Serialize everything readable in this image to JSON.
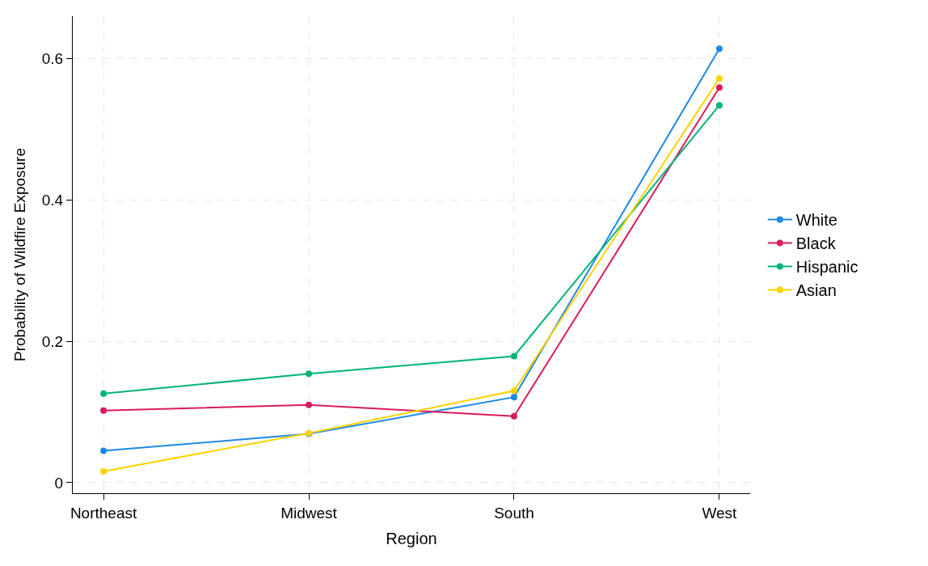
{
  "chart_data": {
    "type": "line",
    "xlabel": "Region",
    "ylabel": "Probability of Wildfire Exposure",
    "categories": [
      "Northeast",
      "Midwest",
      "South",
      "West"
    ],
    "series": [
      {
        "name": "White",
        "color": "#1e88e5",
        "values": [
          0.045,
          0.069,
          0.121,
          0.614
        ]
      },
      {
        "name": "Black",
        "color": "#d81b60",
        "values": [
          0.102,
          0.11,
          0.094,
          0.559
        ]
      },
      {
        "name": "Hispanic",
        "color": "#00b37a",
        "values": [
          0.126,
          0.154,
          0.179,
          0.534
        ]
      },
      {
        "name": "Asian",
        "color": "#ffd200",
        "values": [
          0.016,
          0.07,
          0.13,
          0.572
        ]
      }
    ],
    "ylim": [
      -0.015,
      0.66
    ],
    "yticks": [
      0,
      0.2,
      0.4,
      0.6
    ],
    "grid": true,
    "legend": "right",
    "marker": "circle",
    "line_style": "solid"
  }
}
